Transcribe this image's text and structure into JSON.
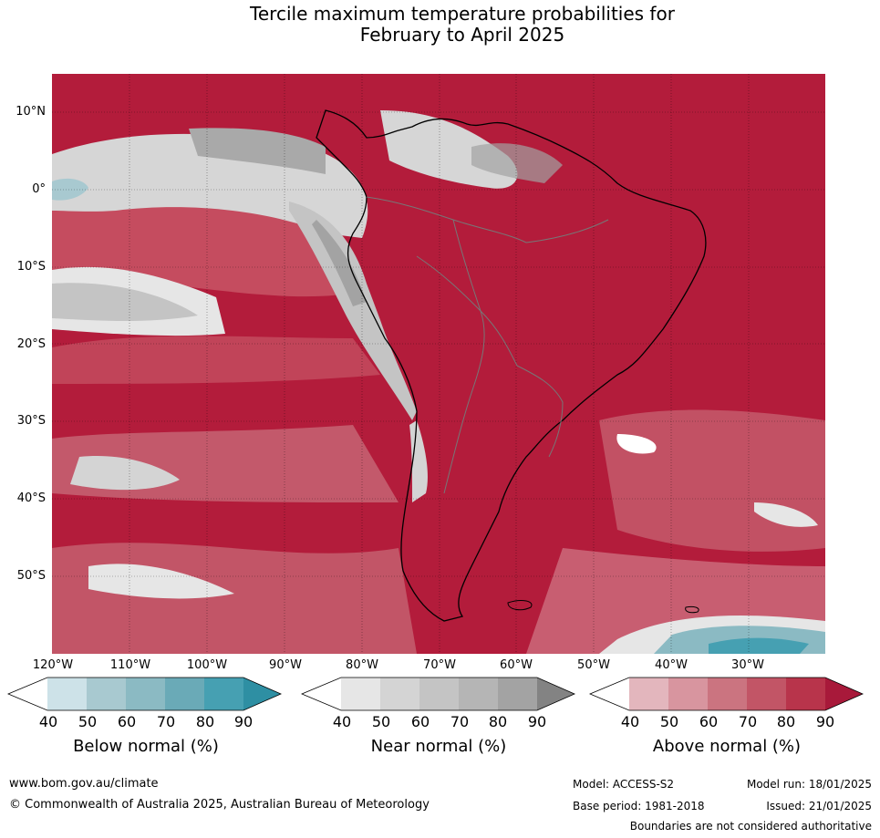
{
  "title_line1": "Tercile maximum temperature probabilities for",
  "title_line2": "February to April 2025",
  "lat_labels": [
    "10°N",
    "0°",
    "10°S",
    "20°S",
    "30°S",
    "40°S",
    "50°S"
  ],
  "lon_labels": [
    "120°W",
    "110°W",
    "100°W",
    "90°W",
    "80°W",
    "70°W",
    "60°W",
    "50°W",
    "40°W",
    "30°W"
  ],
  "colorbars": [
    {
      "title": "Below normal (%)",
      "ticks": [
        "40",
        "50",
        "60",
        "70",
        "80",
        "90"
      ],
      "colors": [
        "#ffffff",
        "#cde2e8",
        "#a8c9d0",
        "#8bbac3",
        "#6aaab7",
        "#46a0b2",
        "#2e8fa3"
      ]
    },
    {
      "title": "Near normal (%)",
      "ticks": [
        "40",
        "50",
        "60",
        "70",
        "80",
        "90"
      ],
      "colors": [
        "#ffffff",
        "#e6e6e6",
        "#d4d4d4",
        "#c4c4c4",
        "#b5b5b5",
        "#a3a3a3",
        "#838383"
      ]
    },
    {
      "title": "Above normal (%)",
      "ticks": [
        "40",
        "50",
        "60",
        "70",
        "80",
        "90"
      ],
      "colors": [
        "#ffffff",
        "#e3b6bd",
        "#d8959f",
        "#cb7480",
        "#c25566",
        "#b8344b",
        "#a8193a"
      ]
    }
  ],
  "footer": {
    "website": "www.bom.gov.au/climate",
    "copyright": "© Commonwealth of Australia 2025, Australian Bureau of Meteorology",
    "model": "Model: ACCESS-S2",
    "model_run": "Model run: 18/01/2025",
    "base_period": "Base period: 1981-2018",
    "issued": "Issued: 21/01/2025",
    "boundaries": "Boundaries are not considered authoritative"
  }
}
